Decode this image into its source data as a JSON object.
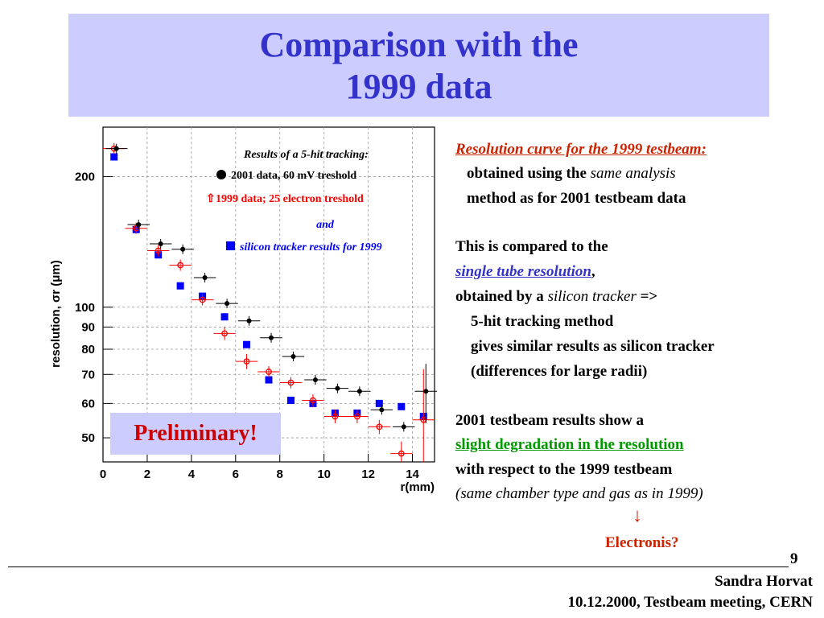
{
  "header": {
    "title_line1": "Comparison with the",
    "title_line2": "1999 data"
  },
  "stamp": "Preliminary!",
  "chart_data": {
    "type": "scatter",
    "yscale": "log",
    "xlabel": "r(mm)",
    "ylabel": "resolution, σr (μm)",
    "xlim": [
      0,
      15
    ],
    "ylim": [
      44,
      260
    ],
    "x_ticks": [
      0,
      2,
      4,
      6,
      8,
      10,
      12,
      14
    ],
    "y_ticks": [
      50,
      60,
      70,
      80,
      90,
      100,
      200
    ],
    "grid": true,
    "legend": {
      "title": "Results of a 5-hit tracking:",
      "entry1": "2001 data, 60 mV treshold",
      "entry2": "1999 data; 25 electron treshold",
      "and": "and",
      "entry3": "silicon tracker results for 1999"
    },
    "series": [
      {
        "name": "2001 data, 60 mV treshold",
        "color": "#000000",
        "x": [
          0.5,
          1.5,
          2.5,
          3.5,
          4.5,
          5.5,
          6.5,
          7.5,
          8.5,
          9.5,
          10.5,
          11.5,
          12.5,
          13.5,
          14.5
        ],
        "y": [
          232,
          155,
          140,
          136,
          117,
          102,
          93,
          85,
          77,
          68,
          65,
          64,
          58,
          53,
          64
        ],
        "yerr": [
          0,
          0,
          0,
          0,
          0,
          0,
          0,
          0,
          0,
          0,
          0,
          0,
          0,
          0,
          10
        ]
      },
      {
        "name": "1999 data; 25 electron treshold",
        "color": "#ff0000",
        "x": [
          0.5,
          1.5,
          2.5,
          3.5,
          4.5,
          5.5,
          6.5,
          7.5,
          8.5,
          9.5,
          10.5,
          11.5,
          12.5,
          13.5,
          14.5
        ],
        "y": [
          232,
          152,
          135,
          125,
          104,
          87,
          75,
          71,
          67,
          61,
          56,
          56,
          53,
          46,
          55
        ],
        "yerr": [
          0,
          0,
          0,
          0,
          0,
          3,
          3,
          2,
          2,
          2,
          2,
          2,
          2,
          3,
          17
        ]
      },
      {
        "name": "silicon tracker results for 1999",
        "color": "#0000ff",
        "x": [
          0.5,
          1.5,
          2.5,
          3.5,
          4.5,
          5.5,
          6.5,
          7.5,
          8.5,
          9.5,
          10.5,
          11.5,
          12.5,
          13.5,
          14.5
        ],
        "y": [
          222,
          151,
          132,
          112,
          106,
          95,
          82,
          68,
          61,
          60,
          57,
          57,
          60,
          59,
          56
        ]
      }
    ]
  },
  "right": {
    "l1": "Resolution curve for the 1999 testbeam:",
    "l2a": "obtained using the ",
    "l2b": "same analysis",
    "l3": "method as for 2001 testbeam data",
    "l4": "This is compared to the",
    "l5a": "single tube resolution",
    "l5b": ",",
    "l6a": "obtained by a ",
    "l6b": "silicon tracker",
    "l6c": " =>",
    "l7": "5-hit tracking method",
    "l8": "gives similar results as silicon tracker",
    "l9": "(differences for large radii)",
    "l10": "2001 testbeam results show a",
    "l11": "slight degradation in the resolution",
    "l12": "with respect to the 1999 testbeam",
    "l13": "(same chamber type and gas as in 1999)",
    "arrow": "↓",
    "l14": "Electronis?"
  },
  "footer": {
    "page_number": "9",
    "author": "Sandra Horvat",
    "event": "10.12.2000, Testbeam meeting, CERN"
  }
}
